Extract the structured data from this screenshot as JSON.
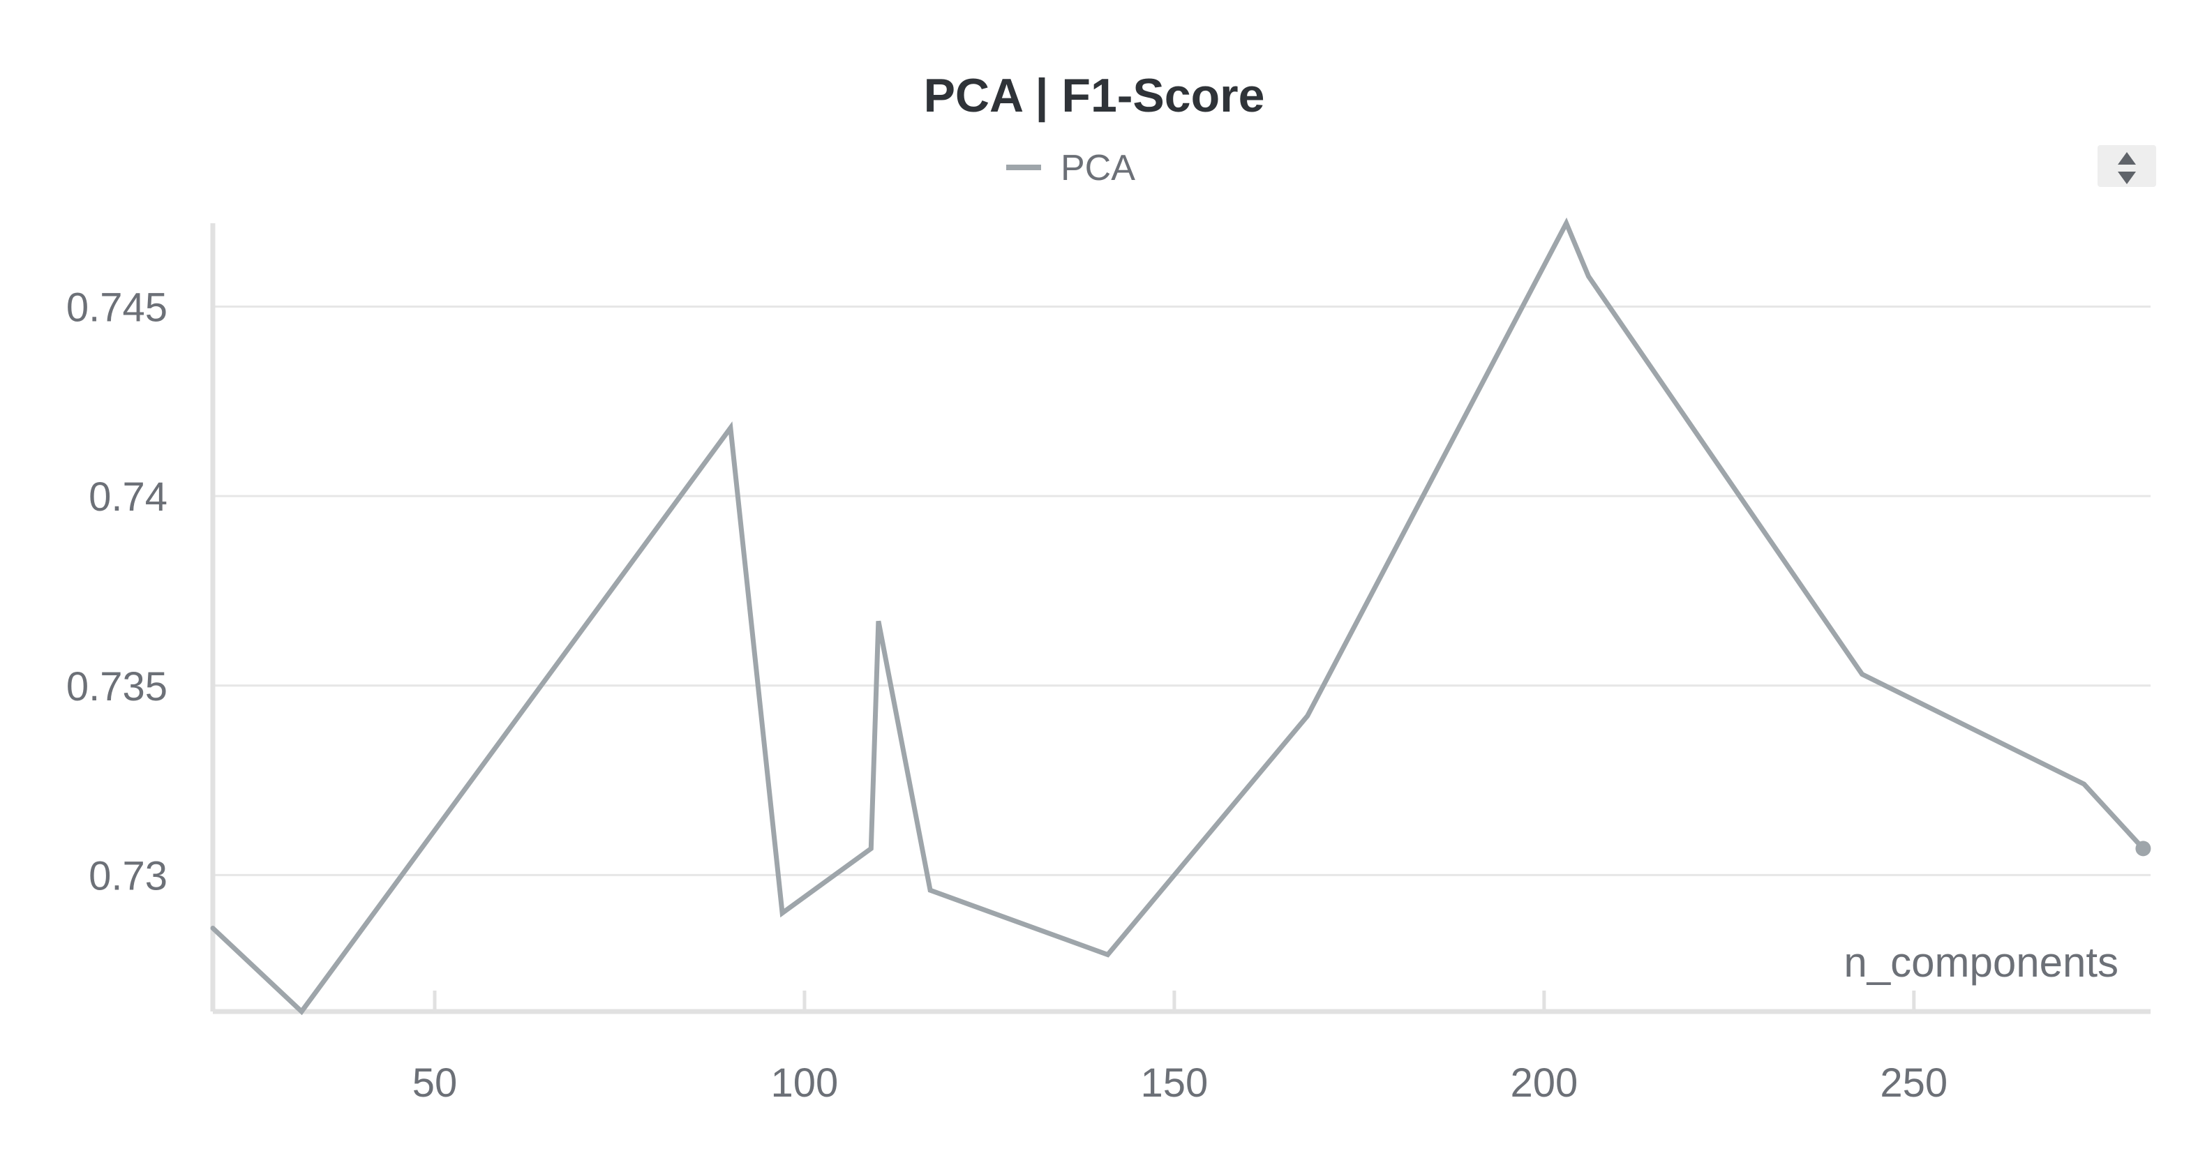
{
  "colors": {
    "series": "#9ea5aa",
    "title": "#2f3338",
    "text": "#6c7077",
    "grid": "#e6e6e6",
    "axis": "#e1e1e1",
    "control_bg": "#eeeeee",
    "control_icon": "#5f6369"
  },
  "legend_control": {
    "icon": "sort-arrows-icon"
  },
  "chart_data": {
    "type": "line",
    "title": "PCA | F1-Score",
    "xlabel": "n_components",
    "ylabel": "",
    "legend": {
      "position": "top-center",
      "entries": [
        "PCA"
      ]
    },
    "grid": {
      "x": false,
      "y": true
    },
    "xlim": [
      20,
      282
    ],
    "ylim": [
      0.7264,
      0.7472
    ],
    "xticks": [
      50,
      100,
      150,
      200,
      250
    ],
    "yticks": [
      0.73,
      0.735,
      0.74,
      0.745
    ],
    "xtick_labels": [
      "50",
      "100",
      "150",
      "200",
      "250"
    ],
    "ytick_labels": [
      "0.73",
      "0.735",
      "0.74",
      "0.745"
    ],
    "series": [
      {
        "name": "PCA",
        "x": [
          20,
          32,
          90,
          97,
          109,
          110,
          117,
          141,
          168,
          203,
          206,
          243,
          273,
          281
        ],
        "y": [
          0.7286,
          0.7264,
          0.7418,
          0.729,
          0.7307,
          0.7367,
          0.7296,
          0.7279,
          0.7342,
          0.7472,
          0.7458,
          0.7353,
          0.7324,
          0.7307
        ]
      }
    ]
  }
}
